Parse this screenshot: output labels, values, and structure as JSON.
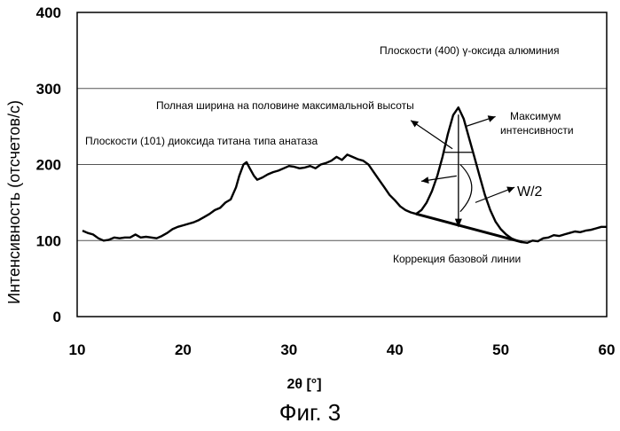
{
  "chart_data": {
    "type": "line",
    "caption": "Фиг. 3",
    "xlabel": "2θ [°]",
    "ylabel": "Интенсивность (отсчетов/с)",
    "xlim": [
      10,
      60
    ],
    "ylim": [
      0,
      400
    ],
    "x_ticks": [
      10,
      20,
      30,
      40,
      50,
      60
    ],
    "y_ticks": [
      0,
      100,
      200,
      300,
      400
    ],
    "grid": "horizontal",
    "series": [
      {
        "points": [
          [
            10.5,
            113
          ],
          [
            11,
            110
          ],
          [
            11.5,
            108
          ],
          [
            12,
            103
          ],
          [
            12.5,
            100
          ],
          [
            13,
            101
          ],
          [
            13.5,
            104
          ],
          [
            14,
            103
          ],
          [
            14.5,
            104
          ],
          [
            15,
            104
          ],
          [
            15.5,
            108
          ],
          [
            16,
            104
          ],
          [
            16.5,
            105
          ],
          [
            17,
            104
          ],
          [
            17.5,
            103
          ],
          [
            18,
            106
          ],
          [
            18.5,
            110
          ],
          [
            19,
            115
          ],
          [
            19.5,
            118
          ],
          [
            20,
            120
          ],
          [
            20.5,
            122
          ],
          [
            21,
            124
          ],
          [
            21.5,
            127
          ],
          [
            22,
            131
          ],
          [
            22.5,
            135
          ],
          [
            23,
            140
          ],
          [
            23.5,
            143
          ],
          [
            24,
            150
          ],
          [
            24.5,
            154
          ],
          [
            25,
            170
          ],
          [
            25.3,
            185
          ],
          [
            25.7,
            200
          ],
          [
            26,
            203
          ],
          [
            26.3,
            195
          ],
          [
            26.7,
            185
          ],
          [
            27,
            180
          ],
          [
            27.5,
            183
          ],
          [
            28,
            187
          ],
          [
            28.5,
            190
          ],
          [
            29,
            192
          ],
          [
            29.5,
            195
          ],
          [
            30,
            198
          ],
          [
            30.5,
            197
          ],
          [
            31,
            195
          ],
          [
            31.5,
            196
          ],
          [
            32,
            198
          ],
          [
            32.5,
            195
          ],
          [
            33,
            200
          ],
          [
            33.5,
            202
          ],
          [
            34,
            205
          ],
          [
            34.5,
            210
          ],
          [
            35,
            206
          ],
          [
            35.5,
            213
          ],
          [
            36,
            210
          ],
          [
            36.5,
            207
          ],
          [
            37,
            205
          ],
          [
            37.5,
            200
          ],
          [
            38,
            190
          ],
          [
            38.5,
            180
          ],
          [
            39,
            170
          ],
          [
            39.5,
            160
          ],
          [
            40,
            153
          ],
          [
            40.5,
            145
          ],
          [
            41,
            140
          ],
          [
            41.5,
            137
          ],
          [
            42,
            135
          ],
          [
            42.5,
            140
          ],
          [
            43,
            150
          ],
          [
            43.5,
            165
          ],
          [
            44,
            185
          ],
          [
            44.5,
            210
          ],
          [
            45,
            240
          ],
          [
            45.5,
            265
          ],
          [
            46,
            275
          ],
          [
            46.5,
            260
          ],
          [
            47,
            235
          ],
          [
            47.5,
            210
          ],
          [
            48,
            185
          ],
          [
            48.5,
            160
          ],
          [
            49,
            140
          ],
          [
            49.5,
            125
          ],
          [
            50,
            115
          ],
          [
            50.5,
            108
          ],
          [
            51,
            103
          ],
          [
            51.5,
            100
          ],
          [
            52,
            98
          ],
          [
            52.5,
            97
          ],
          [
            53,
            100
          ],
          [
            53.5,
            99
          ],
          [
            54,
            103
          ],
          [
            54.5,
            104
          ],
          [
            55,
            107
          ],
          [
            55.5,
            106
          ],
          [
            56,
            108
          ],
          [
            56.5,
            110
          ],
          [
            57,
            112
          ],
          [
            57.5,
            111
          ],
          [
            58,
            113
          ],
          [
            58.5,
            114
          ],
          [
            59,
            116
          ],
          [
            59.5,
            118
          ],
          [
            60,
            118
          ]
        ]
      }
    ],
    "annotations": {
      "alumina": "Плоскости (400) γ-оксида алюминия",
      "fwhm": "Полная ширина на половине максимальной высоты",
      "max_line1": "Максимум",
      "max_line2": "интенсивности",
      "anatase": "Плоскости (101) диоксида титана типа анатаза",
      "half_width": "W/2",
      "baseline": "Коррекция базовой линии"
    },
    "peak_marker": {
      "x": 46,
      "y_top": 275,
      "y_base": 117
    },
    "baseline_segment": [
      [
        42,
        135
      ],
      [
        52,
        98
      ]
    ]
  }
}
